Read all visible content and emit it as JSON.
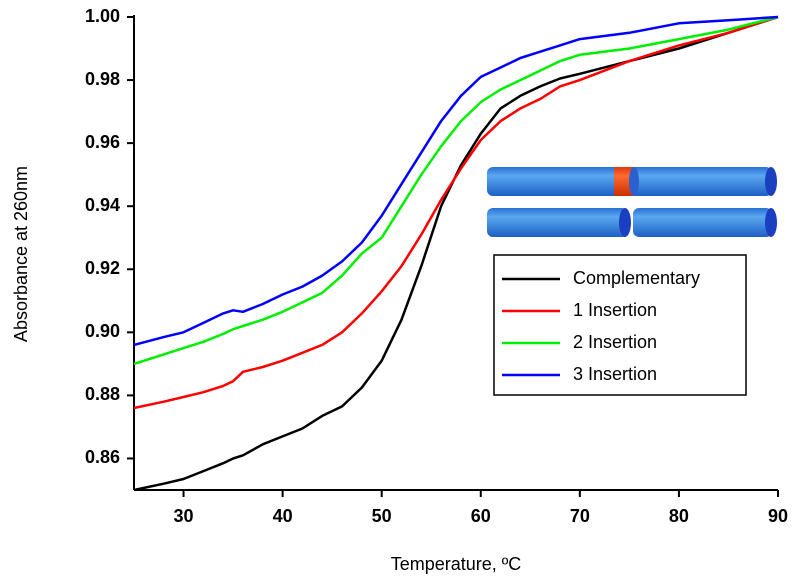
{
  "chart_data": {
    "type": "line",
    "x_label": "Temperature,   ºC",
    "y_label": "Absorbance at 260nm",
    "x": [
      25,
      28,
      30,
      32,
      34,
      35,
      36,
      38,
      40,
      42,
      44,
      46,
      48,
      50,
      52,
      54,
      56,
      58,
      60,
      62,
      64,
      66,
      68,
      70,
      75,
      80,
      85,
      90
    ],
    "series": [
      {
        "name": "Complementary",
        "color": "#000000",
        "values": [
          0.85,
          0.852,
          0.8535,
          0.856,
          0.8585,
          0.86,
          0.861,
          0.8645,
          0.867,
          0.8695,
          0.8735,
          0.8765,
          0.8825,
          0.891,
          0.904,
          0.921,
          0.94,
          0.953,
          0.963,
          0.971,
          0.975,
          0.978,
          0.9805,
          0.982,
          0.986,
          0.99,
          0.995,
          1.0
        ]
      },
      {
        "name": "1 Insertion",
        "color": "#ff0000",
        "values": [
          0.876,
          0.878,
          0.8795,
          0.881,
          0.883,
          0.8845,
          0.8875,
          0.889,
          0.891,
          0.8935,
          0.896,
          0.9,
          0.906,
          0.913,
          0.921,
          0.931,
          0.942,
          0.952,
          0.961,
          0.967,
          0.971,
          0.974,
          0.978,
          0.98,
          0.986,
          0.991,
          0.995,
          1.0
        ]
      },
      {
        "name": "2 Insertion",
        "color": "#00ee00",
        "values": [
          0.89,
          0.893,
          0.895,
          0.897,
          0.8995,
          0.901,
          0.902,
          0.904,
          0.9065,
          0.9095,
          0.9125,
          0.918,
          0.925,
          0.93,
          0.94,
          0.95,
          0.959,
          0.967,
          0.973,
          0.977,
          0.98,
          0.983,
          0.986,
          0.988,
          0.99,
          0.993,
          0.996,
          1.0
        ]
      },
      {
        "name": "3 Insertion",
        "color": "#0000ff",
        "values": [
          0.896,
          0.8985,
          0.9,
          0.903,
          0.906,
          0.907,
          0.9065,
          0.909,
          0.912,
          0.9145,
          0.918,
          0.9225,
          0.9285,
          0.937,
          0.947,
          0.957,
          0.967,
          0.975,
          0.981,
          0.984,
          0.987,
          0.989,
          0.991,
          0.993,
          0.995,
          0.998,
          0.999,
          1.0
        ]
      }
    ],
    "xlim": [
      25,
      90
    ],
    "xticks": [
      30,
      40,
      50,
      60,
      70,
      80,
      90
    ],
    "ylim": [
      0.85,
      1.0
    ],
    "yticks": [
      {
        "value": 0.86,
        "label": "0.86"
      },
      {
        "value": 0.88,
        "label": "0.88"
      },
      {
        "value": 0.9,
        "label": "0.90"
      },
      {
        "value": 0.92,
        "label": "0.92"
      },
      {
        "value": 0.94,
        "label": "0.94"
      },
      {
        "value": 0.96,
        "label": "0.96"
      },
      {
        "value": 0.98,
        "label": "0.98"
      },
      {
        "value": 1.0,
        "label": "1.00"
      }
    ],
    "grid": false,
    "legend": "right"
  }
}
